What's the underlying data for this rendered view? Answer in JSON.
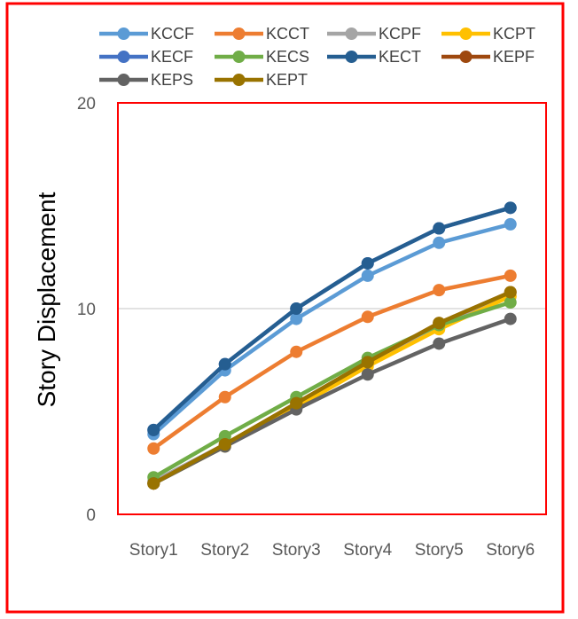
{
  "chart_data": {
    "type": "line",
    "title": "",
    "xlabel": "",
    "ylabel": "Story Displacement",
    "ylim": [
      0,
      20
    ],
    "yticks": [
      0,
      10,
      20
    ],
    "gridlines": "horizontal",
    "legend_position": "top",
    "categories": [
      "Story1",
      "Story2",
      "Story3",
      "Story4",
      "Story5",
      "Story6"
    ],
    "series": [
      {
        "name": "KCCF",
        "color": "#5B9BD5",
        "values": [
          3.9,
          7.0,
          9.5,
          11.6,
          13.2,
          14.1
        ]
      },
      {
        "name": "KCCT",
        "color": "#ED7D31",
        "values": [
          3.2,
          5.7,
          7.9,
          9.6,
          10.9,
          11.6
        ]
      },
      {
        "name": "KCPF",
        "color": "#A5A5A5",
        "values": [
          1.6,
          3.4,
          5.3,
          7.3,
          9.1,
          10.6
        ]
      },
      {
        "name": "KCPT",
        "color": "#FFC000",
        "values": [
          1.5,
          3.3,
          5.2,
          7.2,
          9.0,
          10.6
        ]
      },
      {
        "name": "KECF",
        "color": "#4472C4",
        "values": [
          4.1,
          7.3,
          10.0,
          12.2,
          13.9,
          14.9
        ]
      },
      {
        "name": "KECS",
        "color": "#70AD47",
        "values": [
          1.8,
          3.8,
          5.7,
          7.6,
          9.2,
          10.3
        ]
      },
      {
        "name": "KECT",
        "color": "#255E91",
        "values": [
          4.1,
          7.3,
          10.0,
          12.2,
          13.9,
          14.9
        ]
      },
      {
        "name": "KEPF",
        "color": "#9E480E",
        "values": [
          1.5,
          3.4,
          5.4,
          7.4,
          9.3,
          10.8
        ]
      },
      {
        "name": "KEPS",
        "color": "#636363",
        "values": [
          1.5,
          3.3,
          5.1,
          6.8,
          8.3,
          9.5
        ]
      },
      {
        "name": "KEPT",
        "color": "#997300",
        "values": [
          1.5,
          3.4,
          5.4,
          7.4,
          9.3,
          10.8
        ]
      }
    ]
  },
  "frame": {
    "outer_border_color": "#FF0000",
    "plot_border_color": "#FF0000",
    "grid_color": "#D9D9D9"
  }
}
